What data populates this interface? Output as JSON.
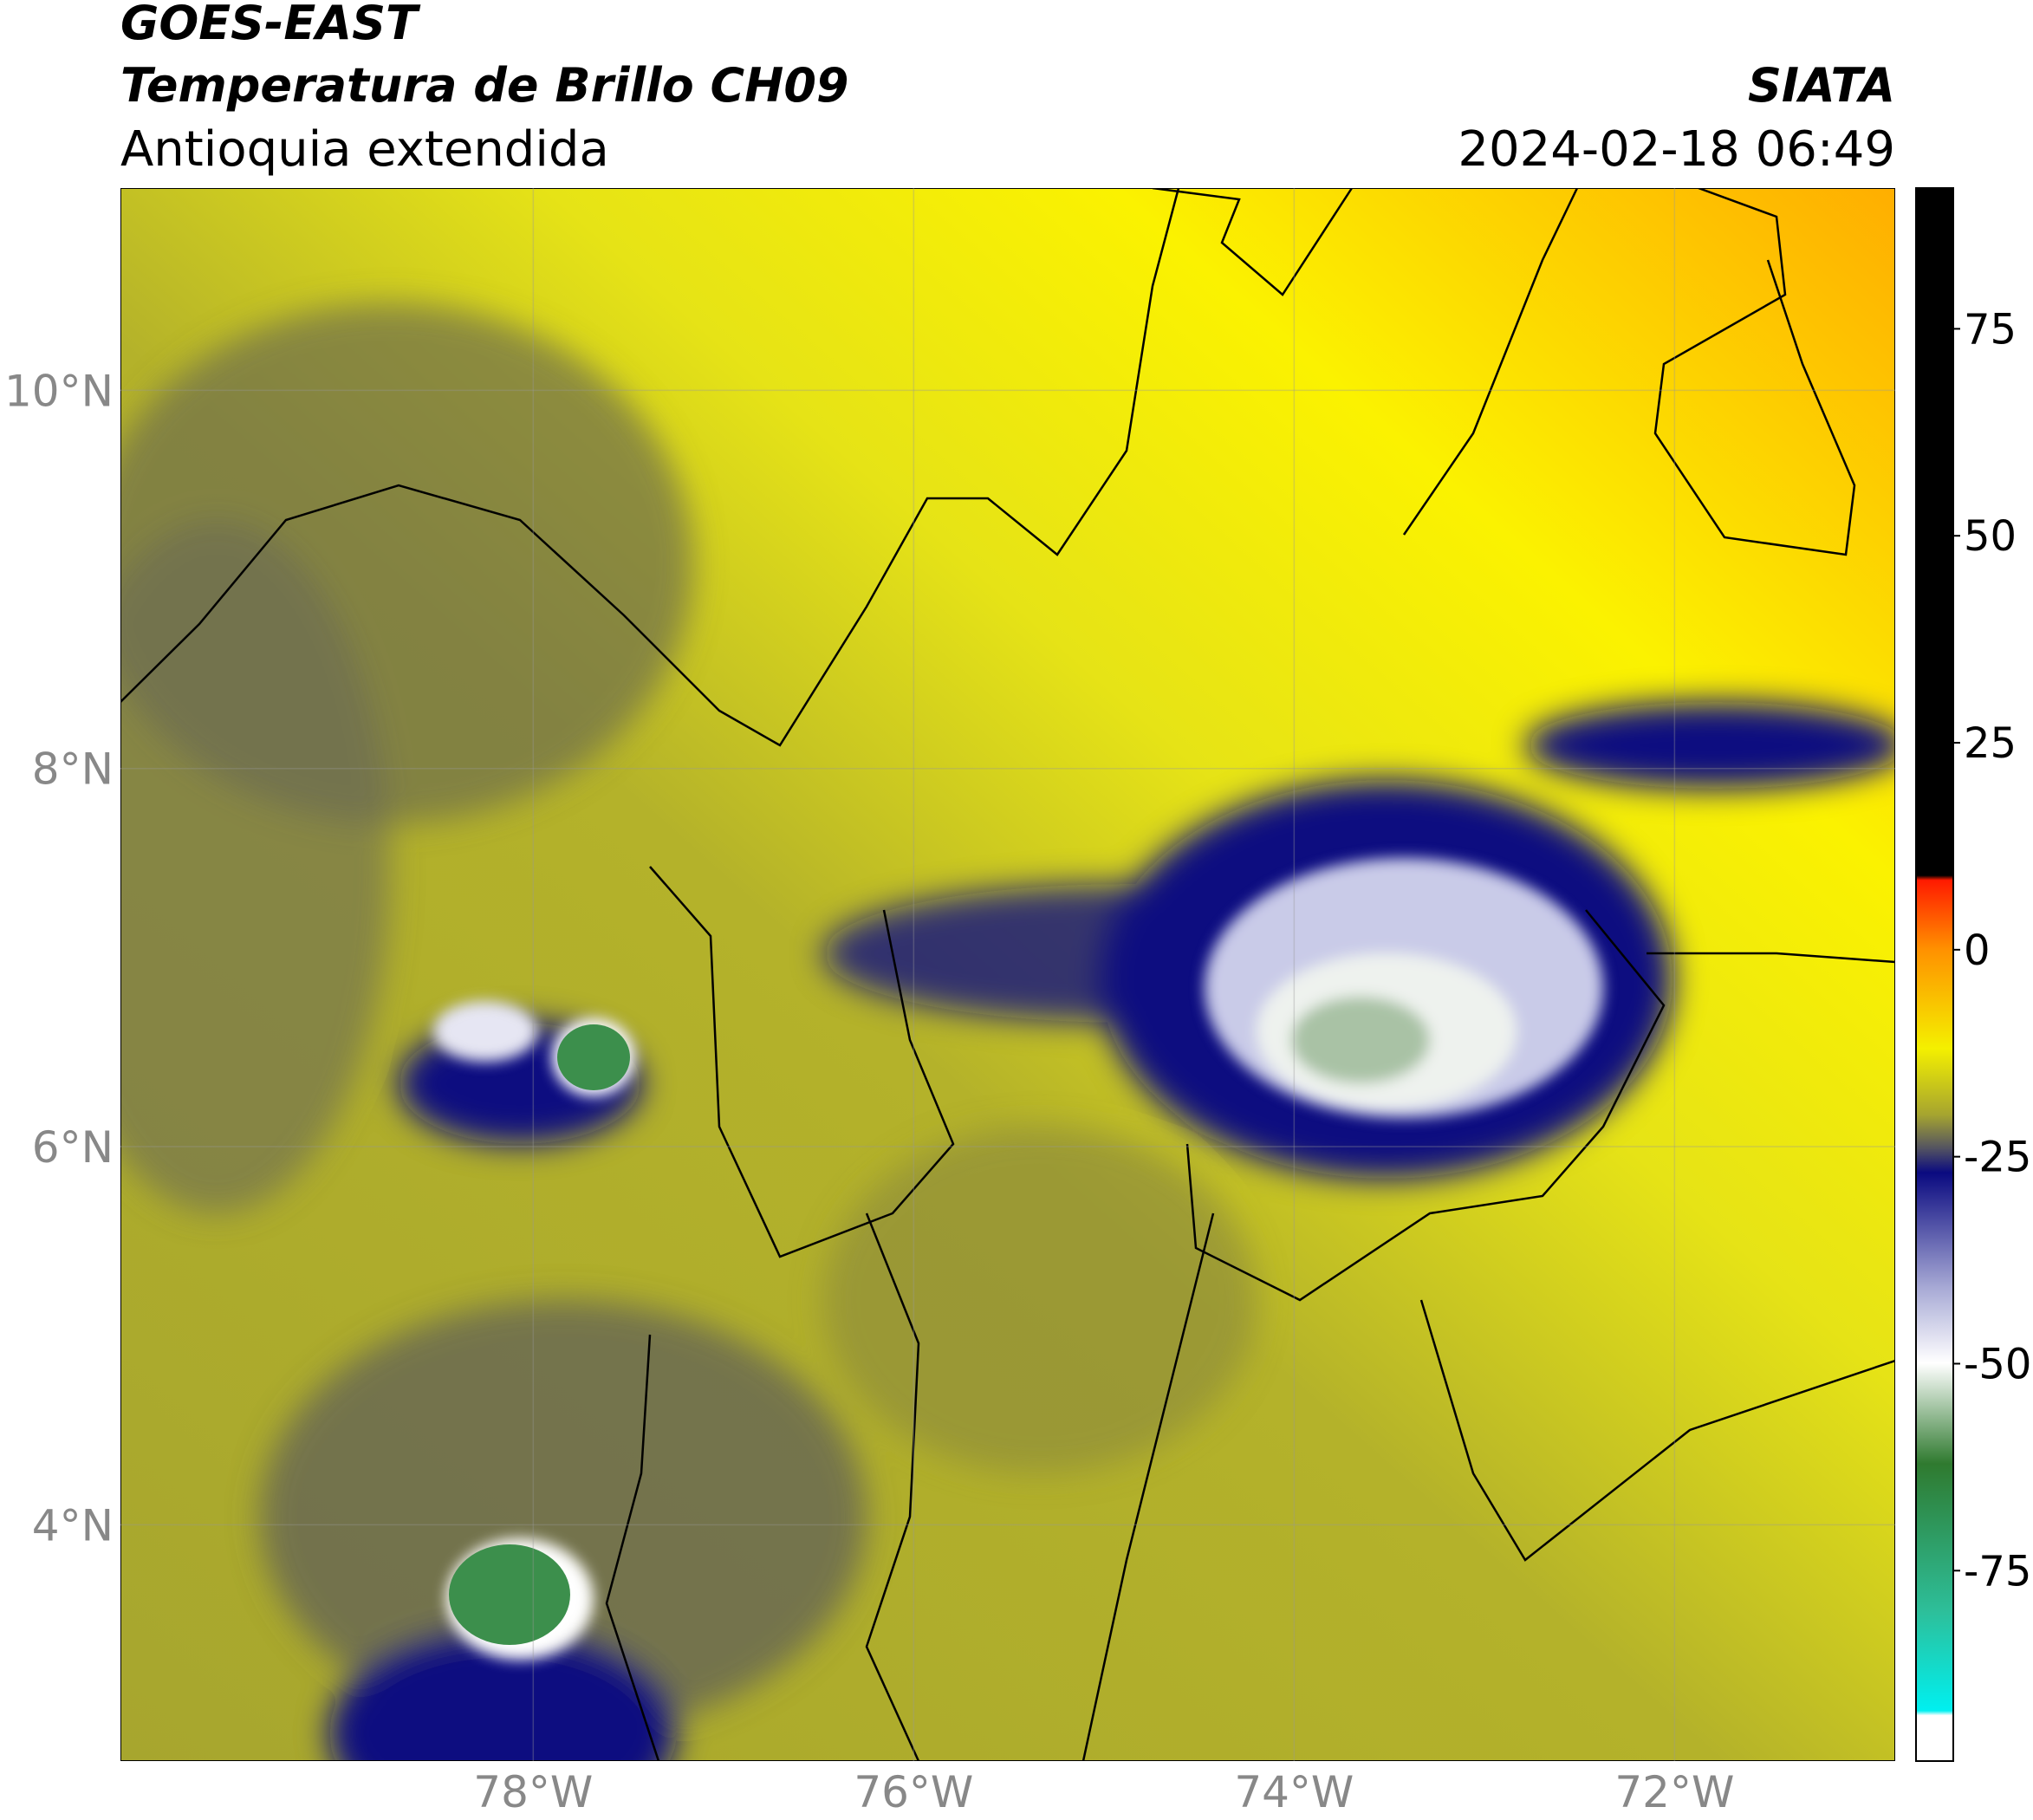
{
  "header": {
    "title": "GOES-EAST",
    "subtitle": "Temperatura de Brillo CH09",
    "region": "Antioquia extendida",
    "source": "SIATA",
    "datetime": "2024-02-18 06:49"
  },
  "chart_data": {
    "type": "map",
    "xlim": [
      -80.17,
      -70.84
    ],
    "ylim": [
      2.75,
      11.07
    ],
    "xticks": [
      {
        "value": -78,
        "label": "78°W"
      },
      {
        "value": -76,
        "label": "76°W"
      },
      {
        "value": -74,
        "label": "74°W"
      },
      {
        "value": -72,
        "label": "72°W"
      }
    ],
    "yticks": [
      {
        "value": 4,
        "label": "4°N"
      },
      {
        "value": 6,
        "label": "6°N"
      },
      {
        "value": 8,
        "label": "8°N"
      },
      {
        "value": 10,
        "label": "10°N"
      }
    ],
    "grid": true,
    "colorbar": {
      "lim": [
        -98,
        92
      ],
      "ticks": [
        -75,
        -50,
        -25,
        0,
        25,
        50,
        75
      ]
    }
  }
}
